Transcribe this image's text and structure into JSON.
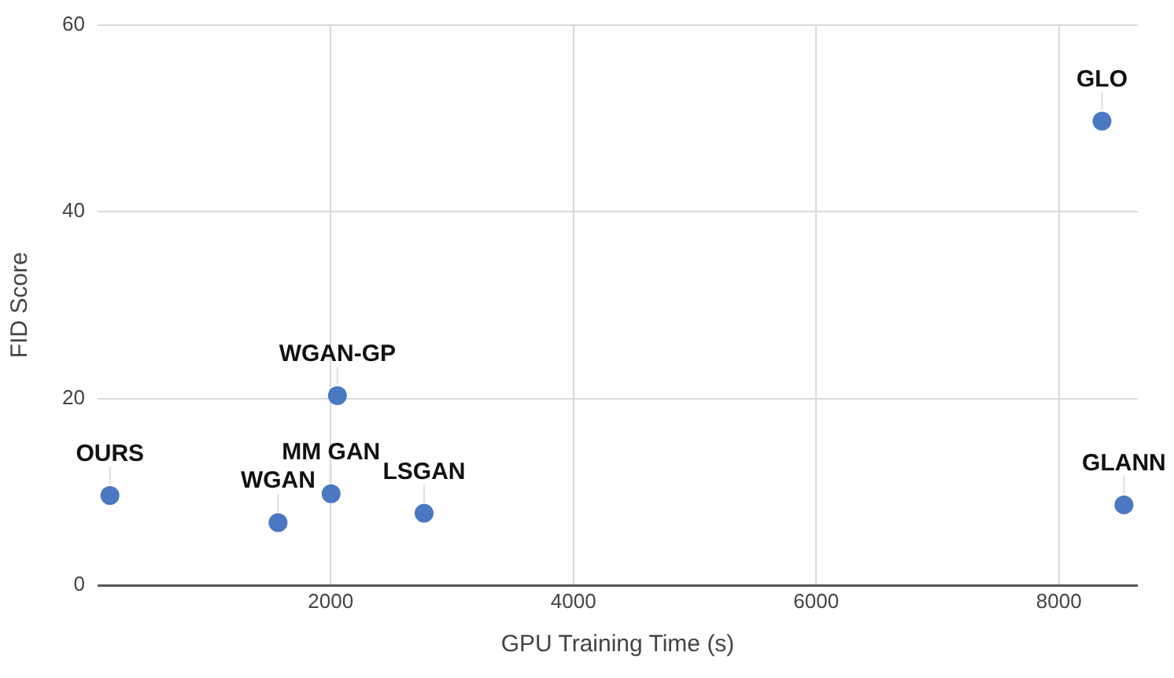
{
  "chart_data": {
    "type": "scatter",
    "xlabel": "GPU Training Time (s)",
    "ylabel": "FID Score",
    "x": [
      182,
      1567,
      2004,
      2770,
      2056,
      8355,
      8536
    ],
    "series": [
      {
        "color": "#4a78c2",
        "values": [
          9.6,
          6.7,
          9.8,
          7.7,
          20.3,
          49.7,
          8.6
        ]
      }
    ],
    "xlim": [
      80,
      8650
    ],
    "xticks": [
      2000,
      4000,
      6000,
      8000
    ],
    "ylim": [
      0,
      60
    ],
    "yticks": [
      0,
      20,
      40,
      60
    ],
    "grid": true,
    "marker": "circle",
    "annotations": [
      {
        "text": "OURS",
        "x": 182,
        "y": 9.6
      },
      {
        "text": "WGAN",
        "x": 1567,
        "y": 6.7
      },
      {
        "text": "MM GAN",
        "x": 2004,
        "y": 9.8
      },
      {
        "text": "LSGAN",
        "x": 2770,
        "y": 7.7
      },
      {
        "text": "WGAN-GP",
        "x": 2056,
        "y": 20.3
      },
      {
        "text": "GLO",
        "x": 8355,
        "y": 49.7
      },
      {
        "text": "GLANN",
        "x": 8536,
        "y": 8.6
      }
    ]
  }
}
